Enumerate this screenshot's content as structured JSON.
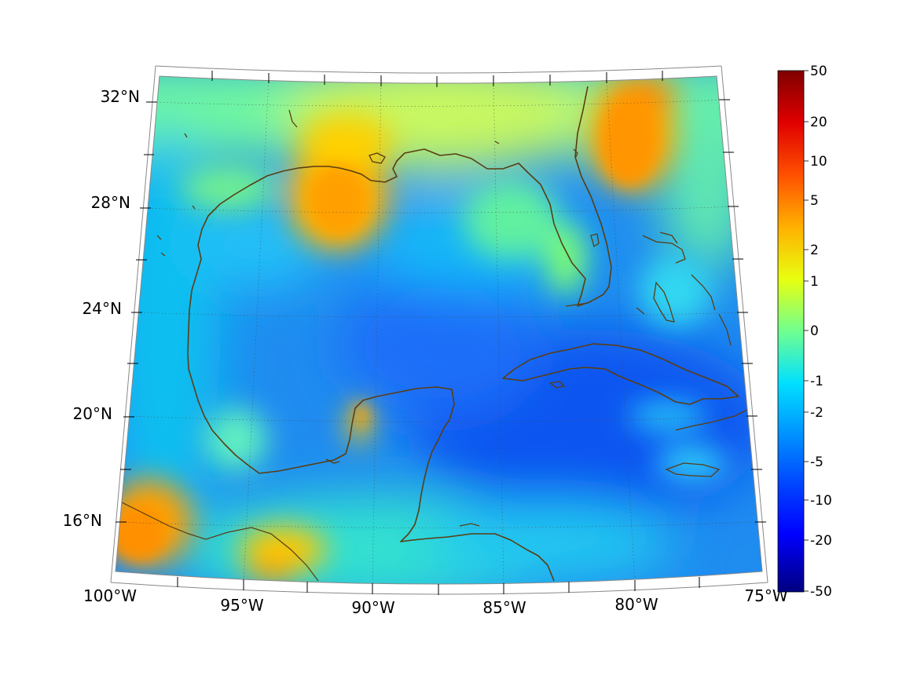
{
  "map": {
    "longitude_labels": [
      "100°W",
      "95°W",
      "90°W",
      "85°W",
      "80°W",
      "75°W"
    ],
    "latitude_labels": [
      "16°N",
      "20°N",
      "24°N",
      "28°N",
      "32°N"
    ],
    "extent": {
      "lon": [
        -100,
        -75
      ],
      "lat": [
        14,
        33
      ]
    }
  },
  "colorbar": {
    "tick_labels": [
      "50",
      "20",
      "10",
      "5",
      "2",
      "1",
      "0",
      "-1",
      "-2",
      "-5",
      "-10",
      "-20",
      "-50"
    ],
    "range": [
      -50,
      50
    ],
    "colormap": "jet",
    "colors": [
      "#00007f",
      "#0000ff",
      "#0080ff",
      "#00ffff",
      "#80ff80",
      "#ffff00",
      "#ff8000",
      "#ff0000",
      "#7f0000"
    ]
  },
  "colors": {
    "coastline": "#5a3d12",
    "background": "#ffffff"
  }
}
